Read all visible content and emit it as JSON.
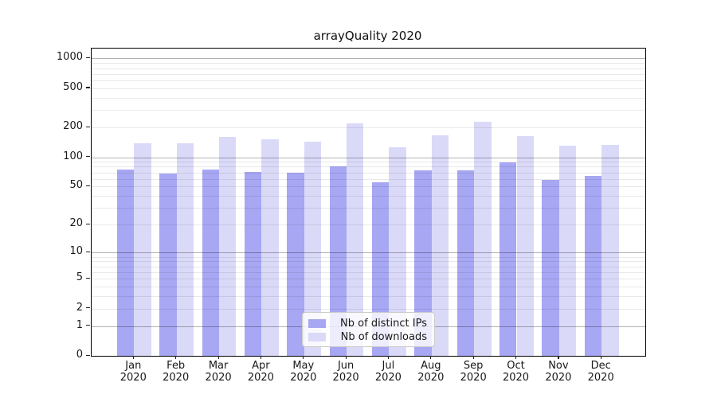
{
  "title": "arrayQuality 2020",
  "chart_data": {
    "type": "bar",
    "title": "arrayQuality 2020",
    "categories": [
      "Jan",
      "Feb",
      "Mar",
      "Apr",
      "May",
      "Jun",
      "Jul",
      "Aug",
      "Sep",
      "Oct",
      "Nov",
      "Dec"
    ],
    "x_tick_second_line": "2020",
    "series": [
      {
        "name": "Nb of distinct IPs",
        "color": "#a7a7f3",
        "values": [
          75,
          68,
          75,
          71,
          70,
          81,
          55,
          74,
          74,
          89,
          59,
          64
        ]
      },
      {
        "name": "Nb of downloads",
        "color": "#dadaf8",
        "values": [
          139,
          139,
          160,
          151,
          145,
          220,
          127,
          167,
          230,
          163,
          131,
          134
        ]
      }
    ],
    "xlabel": "",
    "ylabel": "",
    "y_axis": {
      "scale": "log1p",
      "ticks": [
        0,
        1,
        2,
        5,
        10,
        20,
        50,
        100,
        200,
        500,
        1000
      ],
      "range": [
        0,
        1000
      ]
    },
    "grid": "on",
    "grid_major_decades": [
      1,
      10,
      100,
      1000
    ],
    "legend_position": "bottom-center"
  },
  "legend": {
    "items": [
      {
        "label": "Nb of distinct IPs"
      },
      {
        "label": "Nb of downloads"
      }
    ]
  },
  "colors": {
    "background": "#ffffff",
    "bar_dark": "#a7a7f3",
    "bar_light": "#dadaf8",
    "major_grid": "#b3b3b3",
    "minor_grid": "#e9e9e9",
    "axis": "#000000",
    "text": "#191919",
    "legend_border": "#cccccc"
  }
}
